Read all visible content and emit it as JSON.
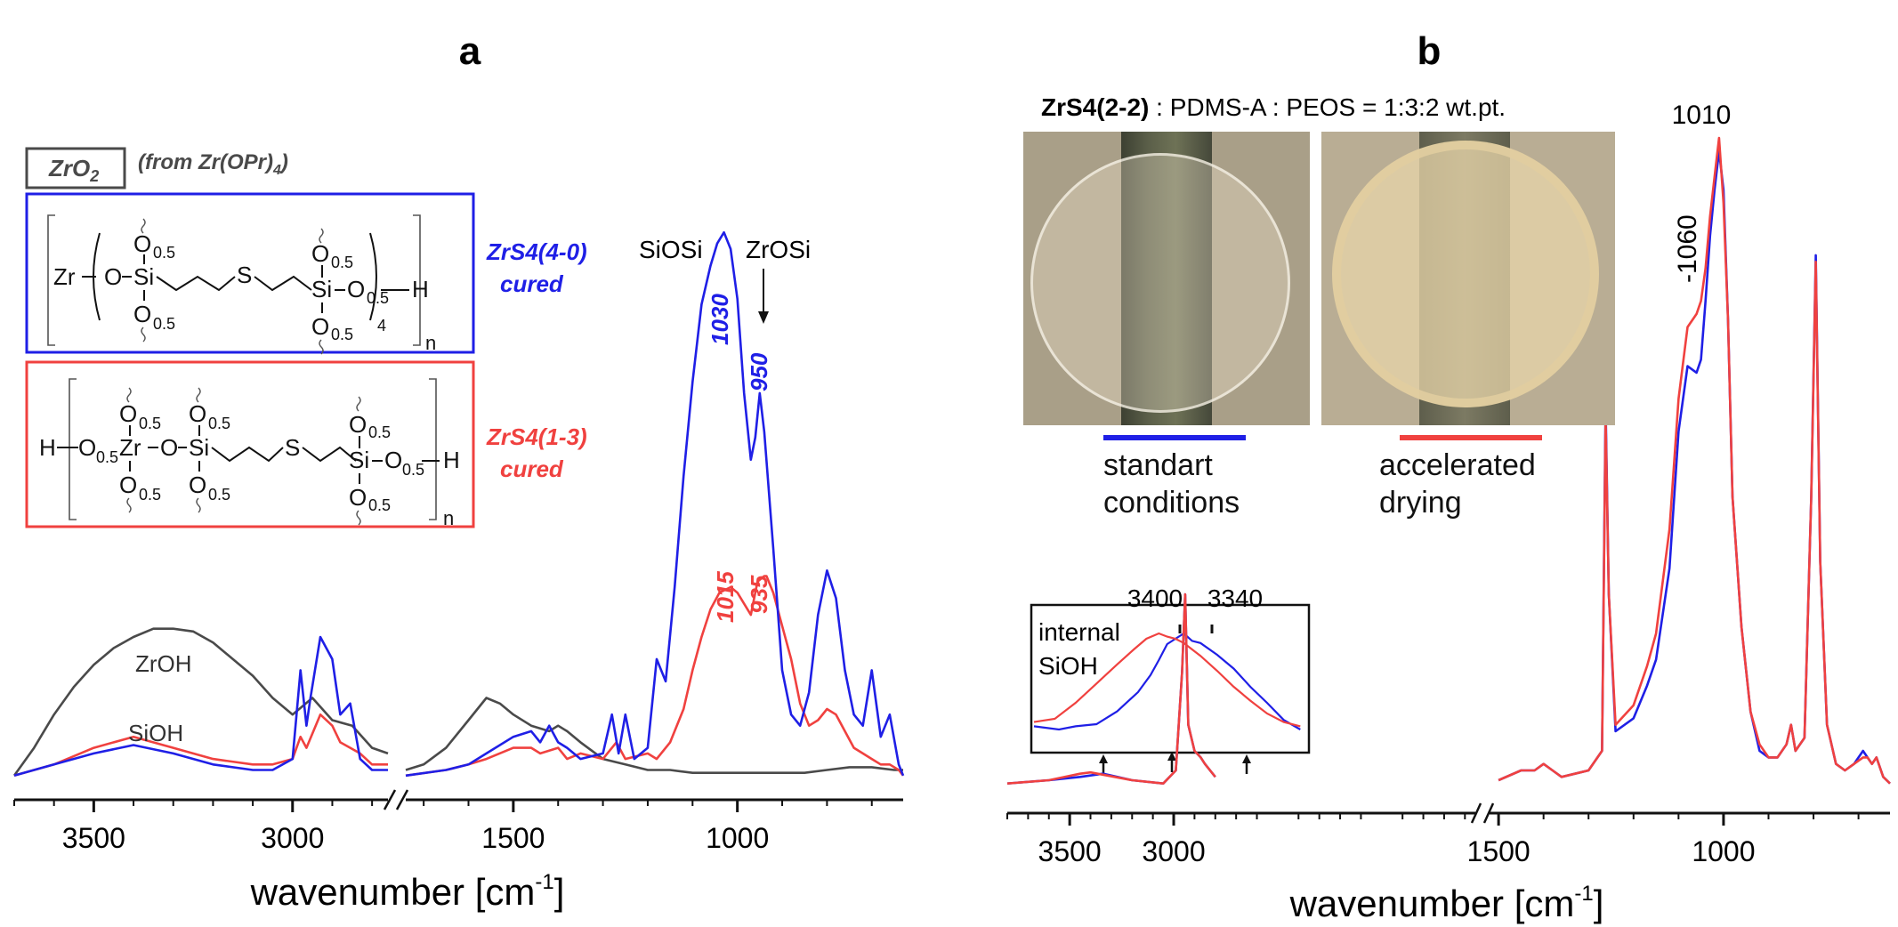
{
  "panel_a": {
    "letter": "a",
    "legend": {
      "zro2_name": "ZrO",
      "zro2_sub": "2",
      "zro2_source_pre": "(from Zr(OPr)",
      "zro2_source_sub": "4",
      "zro2_source_post": ")",
      "blue_label_1": "ZrS4(4-0)",
      "blue_label_2": "cured",
      "red_label_1": "ZrS4(1-3)",
      "red_label_2": "cured"
    },
    "structures": {
      "blue": {
        "zr": "Zr",
        "o": "O",
        "si": "Si",
        "s": "S",
        "h": "H",
        "half": "0.5",
        "four": "4",
        "n": "n"
      },
      "red": {
        "zr": "Zr",
        "o": "O",
        "si": "Si",
        "s": "S",
        "h": "H",
        "half": "0.5",
        "n": "n"
      }
    },
    "annotations": {
      "siosi": "SiOSi",
      "zrosi": "ZrOSi",
      "zroh": "ZrOH",
      "sioh": "SiOH",
      "blue_1030": "1030",
      "blue_950": "950",
      "red_1015": "1015",
      "red_935": "935"
    },
    "x_ticks": [
      "3500",
      "3000",
      "1500",
      "1000"
    ],
    "xlabel_main": "wavenumber [cm",
    "xlabel_sup": "-1",
    "xlabel_end": "]"
  },
  "panel_b": {
    "letter": "b",
    "title_bold": "ZrS4(2-2)",
    "title_rest": " : PDMS-A : PEOS = 1:3:2 wt.pt.",
    "caption_left_1": "standart",
    "caption_left_2": "conditions",
    "caption_right_1": "accelerated",
    "caption_right_2": "drying",
    "peak_1010": "1010",
    "peak_1060": "1060",
    "inset": {
      "label_1": "internal",
      "label_2": "SiOH",
      "peak_3400": "3400",
      "peak_3340": "3340"
    },
    "x_ticks": [
      "3500",
      "3000",
      "1500",
      "1000"
    ],
    "xlabel_main": "wavenumber [cm",
    "xlabel_sup": "-1",
    "xlabel_end": "]"
  },
  "colors": {
    "blue": "#1f1fe6",
    "red": "#f0413f",
    "gray": "#4a4a4a"
  },
  "chart_data": [
    {
      "type": "line",
      "panel": "a",
      "xlabel": "wavenumber [cm-1]",
      "ylabel": "",
      "x_axis": "reversed, broken between ~2750 and ~1750 cm-1",
      "xlim_high_segment": [
        3700,
        2760
      ],
      "xlim_low_segment": [
        1740,
        630
      ],
      "y_scale": "relative absorbance (0-1, no numeric y axis)",
      "series": [
        {
          "name": "ZrS4(4-0) cured",
          "color": "blue",
          "x": [
            3700,
            3600,
            3500,
            3400,
            3300,
            3200,
            3100,
            3050,
            3000,
            2980,
            2965,
            2955,
            2930,
            2900,
            2880,
            2855,
            2830,
            2800,
            2760,
            1740,
            1650,
            1600,
            1560,
            1500,
            1460,
            1440,
            1420,
            1400,
            1380,
            1350,
            1300,
            1280,
            1265,
            1250,
            1230,
            1200,
            1180,
            1160,
            1140,
            1120,
            1100,
            1080,
            1060,
            1045,
            1030,
            1015,
            1000,
            985,
            970,
            960,
            950,
            940,
            920,
            900,
            880,
            860,
            840,
            820,
            800,
            780,
            760,
            740,
            720,
            700,
            680,
            660,
            640,
            630
          ],
          "y": [
            0.01,
            0.03,
            0.05,
            0.065,
            0.05,
            0.03,
            0.02,
            0.02,
            0.04,
            0.2,
            0.1,
            0.15,
            0.26,
            0.22,
            0.12,
            0.14,
            0.04,
            0.02,
            0.02,
            0.01,
            0.02,
            0.03,
            0.05,
            0.08,
            0.09,
            0.07,
            0.1,
            0.07,
            0.06,
            0.04,
            0.05,
            0.12,
            0.05,
            0.12,
            0.04,
            0.06,
            0.22,
            0.18,
            0.35,
            0.55,
            0.72,
            0.86,
            0.93,
            0.97,
            0.99,
            0.96,
            0.87,
            0.7,
            0.58,
            0.62,
            0.7,
            0.63,
            0.42,
            0.2,
            0.12,
            0.1,
            0.16,
            0.3,
            0.38,
            0.33,
            0.2,
            0.12,
            0.1,
            0.2,
            0.08,
            0.12,
            0.03,
            0.01
          ]
        },
        {
          "name": "ZrS4(1-3) cured",
          "color": "red",
          "x": [
            3700,
            3600,
            3500,
            3400,
            3300,
            3200,
            3100,
            3050,
            3000,
            2980,
            2965,
            2930,
            2900,
            2880,
            2855,
            2830,
            2800,
            2760,
            1740,
            1650,
            1600,
            1560,
            1500,
            1460,
            1440,
            1400,
            1380,
            1350,
            1300,
            1270,
            1250,
            1200,
            1180,
            1150,
            1120,
            1100,
            1080,
            1060,
            1040,
            1015,
            1000,
            985,
            970,
            955,
            940,
            935,
            920,
            900,
            880,
            860,
            840,
            820,
            800,
            780,
            760,
            740,
            720,
            700,
            680,
            660,
            640,
            630
          ],
          "y": [
            0.01,
            0.03,
            0.06,
            0.08,
            0.06,
            0.04,
            0.03,
            0.03,
            0.04,
            0.08,
            0.06,
            0.12,
            0.1,
            0.07,
            0.06,
            0.05,
            0.03,
            0.03,
            0.01,
            0.02,
            0.03,
            0.04,
            0.06,
            0.06,
            0.05,
            0.06,
            0.04,
            0.05,
            0.04,
            0.07,
            0.04,
            0.05,
            0.04,
            0.07,
            0.13,
            0.2,
            0.26,
            0.31,
            0.34,
            0.35,
            0.34,
            0.32,
            0.3,
            0.36,
            0.37,
            0.37,
            0.34,
            0.28,
            0.22,
            0.14,
            0.1,
            0.11,
            0.13,
            0.12,
            0.09,
            0.06,
            0.05,
            0.04,
            0.03,
            0.03,
            0.02,
            0.01
          ]
        },
        {
          "name": "ZrO2 (from Zr(OPr)4)",
          "color": "gray",
          "x": [
            3700,
            3650,
            3600,
            3550,
            3500,
            3450,
            3400,
            3350,
            3300,
            3250,
            3200,
            3150,
            3100,
            3050,
            3000,
            2950,
            2900,
            2850,
            2800,
            2760,
            1740,
            1700,
            1650,
            1600,
            1560,
            1530,
            1500,
            1460,
            1420,
            1400,
            1380,
            1350,
            1300,
            1250,
            1200,
            1150,
            1100,
            1050,
            1000,
            950,
            900,
            850,
            800,
            750,
            700,
            650,
            630
          ],
          "y": [
            0.01,
            0.06,
            0.12,
            0.17,
            0.21,
            0.24,
            0.26,
            0.275,
            0.275,
            0.27,
            0.25,
            0.22,
            0.19,
            0.15,
            0.12,
            0.15,
            0.11,
            0.1,
            0.06,
            0.05,
            0.02,
            0.03,
            0.06,
            0.11,
            0.15,
            0.14,
            0.12,
            0.1,
            0.09,
            0.1,
            0.09,
            0.07,
            0.04,
            0.03,
            0.02,
            0.02,
            0.015,
            0.015,
            0.015,
            0.015,
            0.015,
            0.015,
            0.02,
            0.025,
            0.025,
            0.02,
            0.02
          ]
        }
      ]
    },
    {
      "type": "line",
      "panel": "b",
      "xlabel": "wavenumber [cm-1]",
      "ylabel": "",
      "x_axis": "reversed, broken near 1500 cm-1",
      "xlim_high_segment": [
        3800,
        1550
      ],
      "xlim_low_segment": [
        1520,
        630
      ],
      "y_scale": "relative absorbance (0-1, no numeric y axis)",
      "series": [
        {
          "name": "standart conditions",
          "color": "blue",
          "x": [
            3800,
            3600,
            3450,
            3340,
            3200,
            3050,
            2990,
            2960,
            2945,
            2930,
            2900,
            2870,
            2850,
            2800,
            1530,
            1500,
            1450,
            1420,
            1400,
            1380,
            1360,
            1300,
            1270,
            1262,
            1255,
            1240,
            1200,
            1170,
            1150,
            1120,
            1100,
            1080,
            1060,
            1050,
            1040,
            1030,
            1020,
            1010,
            1000,
            990,
            980,
            960,
            940,
            920,
            900,
            880,
            860,
            850,
            840,
            820,
            805,
            795,
            785,
            770,
            750,
            730,
            710,
            690,
            680,
            670,
            660,
            645,
            630
          ],
          "y": [
            0.01,
            0.015,
            0.02,
            0.025,
            0.015,
            0.01,
            0.03,
            0.18,
            0.3,
            0.1,
            0.06,
            0.05,
            0.04,
            0.02,
            0.01,
            0.015,
            0.03,
            0.03,
            0.04,
            0.03,
            0.02,
            0.03,
            0.06,
            0.59,
            0.3,
            0.09,
            0.11,
            0.16,
            0.2,
            0.34,
            0.55,
            0.65,
            0.64,
            0.66,
            0.75,
            0.85,
            0.92,
            0.98,
            0.92,
            0.72,
            0.45,
            0.25,
            0.12,
            0.06,
            0.05,
            0.05,
            0.07,
            0.1,
            0.06,
            0.08,
            0.45,
            0.82,
            0.35,
            0.1,
            0.04,
            0.03,
            0.04,
            0.06,
            0.05,
            0.04,
            0.05,
            0.02,
            0.01
          ]
        },
        {
          "name": "accelerated drying",
          "color": "red",
          "x": [
            3800,
            3600,
            3450,
            3400,
            3200,
            3050,
            2990,
            2960,
            2945,
            2930,
            2900,
            2870,
            2850,
            2800,
            1530,
            1500,
            1450,
            1420,
            1400,
            1380,
            1360,
            1300,
            1270,
            1262,
            1255,
            1240,
            1200,
            1170,
            1150,
            1120,
            1100,
            1080,
            1060,
            1050,
            1040,
            1030,
            1020,
            1010,
            1000,
            990,
            980,
            960,
            940,
            920,
            900,
            880,
            860,
            850,
            840,
            820,
            805,
            795,
            785,
            770,
            750,
            730,
            710,
            690,
            680,
            670,
            660,
            645,
            630
          ],
          "y": [
            0.01,
            0.015,
            0.025,
            0.027,
            0.015,
            0.01,
            0.03,
            0.18,
            0.3,
            0.1,
            0.06,
            0.05,
            0.04,
            0.02,
            0.01,
            0.015,
            0.03,
            0.03,
            0.04,
            0.03,
            0.02,
            0.03,
            0.06,
            0.57,
            0.3,
            0.1,
            0.13,
            0.19,
            0.24,
            0.4,
            0.6,
            0.71,
            0.73,
            0.75,
            0.8,
            0.88,
            0.94,
            1.0,
            0.9,
            0.72,
            0.45,
            0.25,
            0.12,
            0.07,
            0.05,
            0.05,
            0.07,
            0.1,
            0.06,
            0.08,
            0.45,
            0.81,
            0.35,
            0.1,
            0.04,
            0.03,
            0.04,
            0.05,
            0.05,
            0.04,
            0.05,
            0.02,
            0.01
          ]
        }
      ],
      "inset": {
        "label": "internal SiOH",
        "xlim": [
          3700,
          3050
        ],
        "series": [
          {
            "name": "standart conditions",
            "color": "blue",
            "x": [
              3700,
              3640,
              3600,
              3550,
              3500,
              3450,
              3420,
              3400,
              3380,
              3360,
              3340,
              3320,
              3300,
              3260,
              3220,
              3180,
              3140,
              3100,
              3060
            ],
            "y": [
              0.08,
              0.05,
              0.08,
              0.1,
              0.22,
              0.4,
              0.56,
              0.7,
              0.85,
              0.9,
              0.95,
              0.88,
              0.86,
              0.75,
              0.62,
              0.45,
              0.3,
              0.14,
              0.05
            ]
          },
          {
            "name": "accelerated drying",
            "color": "red",
            "x": [
              3700,
              3650,
              3600,
              3550,
              3500,
              3460,
              3430,
              3400,
              3380,
              3360,
              3340,
              3320,
              3300,
              3260,
              3220,
              3180,
              3140,
              3100,
              3060
            ],
            "y": [
              0.12,
              0.15,
              0.3,
              0.48,
              0.66,
              0.8,
              0.9,
              0.95,
              0.92,
              0.9,
              0.86,
              0.8,
              0.74,
              0.6,
              0.45,
              0.32,
              0.2,
              0.12,
              0.08
            ]
          }
        ]
      }
    }
  ]
}
